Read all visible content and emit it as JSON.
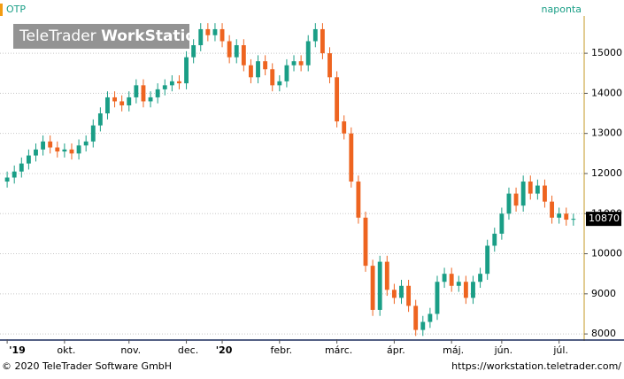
{
  "chart_data": {
    "type": "candlestick",
    "title": "OTP",
    "interval": "naponta",
    "logo": [
      "TeleTrader",
      "WorkStation"
    ],
    "up_color": "#1a9e86",
    "down_color": "#ee6420",
    "grid": true,
    "ylim": [
      7870,
      15930
    ],
    "yticks": [
      8000,
      9000,
      10000,
      11000,
      12000,
      13000,
      14000,
      15000
    ],
    "xlim": [
      -1,
      80.5
    ],
    "xticks": [
      {
        "value": 0,
        "label": "'19"
      },
      {
        "value": 8,
        "label": "okt."
      },
      {
        "value": 17,
        "label": "nov."
      },
      {
        "value": 25,
        "label": "dec."
      },
      {
        "value": 30,
        "label": "'20"
      },
      {
        "value": 38,
        "label": "febr."
      },
      {
        "value": 46,
        "label": "márc."
      },
      {
        "value": 54,
        "label": "ápr."
      },
      {
        "value": 62,
        "label": "máj."
      },
      {
        "value": 69,
        "label": "jún."
      },
      {
        "value": 77,
        "label": "júl."
      }
    ],
    "open": [
      11800,
      11900,
      12050,
      12250,
      12450,
      12600,
      12800,
      12650,
      12550,
      12600,
      12500,
      12700,
      12800,
      13200,
      13500,
      13900,
      13800,
      13700,
      13900,
      14200,
      13800,
      13900,
      14100,
      14200,
      14300,
      14250,
      14900,
      15200,
      15600,
      15450,
      15600,
      15300,
      14900,
      15200,
      14700,
      14400,
      14800,
      14600,
      14200,
      14300,
      14700,
      14800,
      14700,
      15300,
      15600,
      15000,
      14400,
      13300,
      13000,
      11800,
      10900,
      9700,
      8600,
      9800,
      9100,
      8900,
      9200,
      8700,
      8100,
      8300,
      8500,
      9300,
      9500,
      9200,
      9300,
      8900,
      9300,
      9500,
      10200,
      10500,
      11000,
      11500,
      11200,
      11800,
      11500,
      11700,
      11300,
      10900,
      11000,
      10850
    ],
    "high": [
      12050,
      12200,
      12400,
      12600,
      12750,
      12950,
      12950,
      12800,
      12750,
      12750,
      12850,
      12950,
      13350,
      13650,
      14050,
      14050,
      13950,
      14050,
      14350,
      14350,
      14050,
      14250,
      14350,
      14450,
      14450,
      15050,
      15350,
      15750,
      15750,
      15750,
      15750,
      15450,
      15350,
      15350,
      14850,
      14950,
      14950,
      14750,
      14450,
      14850,
      14950,
      14950,
      15450,
      15750,
      15750,
      15150,
      14550,
      13450,
      13150,
      11950,
      11050,
      9850,
      9950,
      9950,
      9250,
      9350,
      9350,
      8850,
      8450,
      8650,
      9450,
      9650,
      9650,
      9450,
      9450,
      9450,
      9650,
      10350,
      10650,
      11150,
      11650,
      11650,
      11950,
      11950,
      11850,
      11850,
      11450,
      11150,
      11150,
      11000
    ],
    "low": [
      11650,
      11750,
      11900,
      12100,
      12300,
      12450,
      12500,
      12400,
      12400,
      12350,
      12350,
      12550,
      12650,
      13050,
      13350,
      13650,
      13550,
      13550,
      13750,
      13650,
      13650,
      13750,
      13950,
      14050,
      14100,
      14100,
      14750,
      15050,
      15300,
      15300,
      15150,
      14750,
      14750,
      14550,
      14250,
      14250,
      14450,
      14050,
      14050,
      14150,
      14550,
      14550,
      14550,
      15150,
      14850,
      14250,
      13150,
      12850,
      11650,
      10750,
      9550,
      8450,
      8450,
      8950,
      8750,
      8750,
      8550,
      7950,
      7950,
      8150,
      8350,
      9150,
      9050,
      9050,
      8750,
      8750,
      9150,
      9350,
      10050,
      10350,
      10850,
      11050,
      11050,
      11350,
      11350,
      11150,
      10750,
      10750,
      10700,
      10700
    ],
    "close": [
      11900,
      12050,
      12250,
      12450,
      12600,
      12800,
      12650,
      12550,
      12600,
      12500,
      12700,
      12800,
      13200,
      13500,
      13900,
      13800,
      13700,
      13900,
      14200,
      13800,
      13900,
      14100,
      14200,
      14300,
      14250,
      14900,
      15200,
      15600,
      15450,
      15600,
      15300,
      14900,
      15200,
      14700,
      14400,
      14800,
      14600,
      14200,
      14300,
      14700,
      14800,
      14700,
      15300,
      15600,
      15000,
      14400,
      13300,
      13000,
      11800,
      10900,
      9700,
      8600,
      9800,
      9100,
      8900,
      9200,
      8700,
      8100,
      8300,
      8500,
      9300,
      9500,
      9200,
      9300,
      8900,
      9300,
      9500,
      10200,
      10500,
      11000,
      11500,
      11200,
      11800,
      11500,
      11700,
      11300,
      10900,
      11000,
      10850,
      10870
    ]
  },
  "footer": {
    "copyright": "© 2020 TeleTrader Software GmbH",
    "url": "https://workstation.teletrader.com/"
  }
}
